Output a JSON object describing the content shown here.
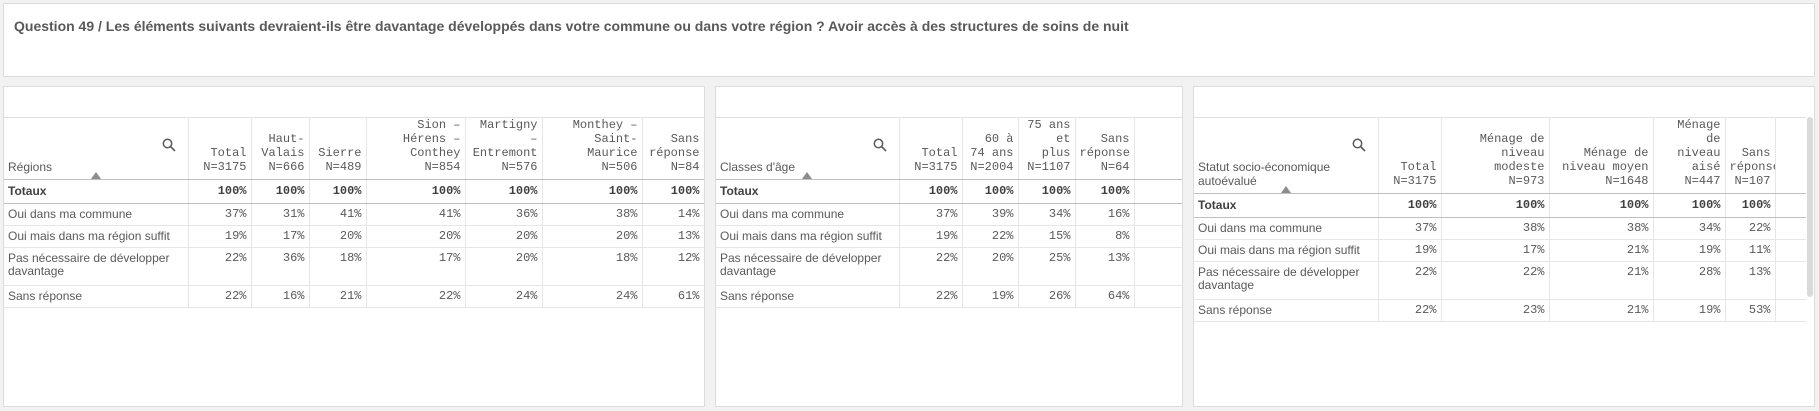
{
  "title": "Question 49 / Les éléments suivants devraient-ils être davantage développés dans votre commune ou dans votre région ? Avoir accès à des structures de soins de nuit",
  "colors": {
    "background": "#f2f2f2",
    "panel": "#ffffff",
    "text": "#595959",
    "border": "#dcdcdc"
  },
  "row_labels": {
    "totals": "Totaux",
    "r1": "Oui dans ma commune",
    "r2": "Oui mais dans ma région suffit",
    "r3": "Pas nécessaire de développer davantage",
    "r4": "Sans réponse"
  },
  "tables": [
    {
      "dimension": "Régions",
      "columns": [
        {
          "name": "Total",
          "n": "N=3175"
        },
        {
          "name": "Haut-Valais",
          "n": "N=666"
        },
        {
          "name": "Sierre",
          "n": "N=489"
        },
        {
          "name": "Sion – Hérens – Conthey",
          "n": "N=854"
        },
        {
          "name": "Martigny – Entremont",
          "n": "N=576"
        },
        {
          "name": "Monthey – Saint-Maurice",
          "n": "N=506"
        },
        {
          "name": "Sans réponse",
          "n": "N=84"
        }
      ],
      "rows": [
        [
          "100%",
          "100%",
          "100%",
          "100%",
          "100%",
          "100%",
          "100%"
        ],
        [
          "37%",
          "31%",
          "41%",
          "41%",
          "36%",
          "38%",
          "14%"
        ],
        [
          "19%",
          "17%",
          "20%",
          "20%",
          "20%",
          "20%",
          "13%"
        ],
        [
          "22%",
          "36%",
          "18%",
          "17%",
          "20%",
          "18%",
          "12%"
        ],
        [
          "22%",
          "16%",
          "21%",
          "22%",
          "24%",
          "24%",
          "61%"
        ]
      ]
    },
    {
      "dimension": "Classes d'âge",
      "columns": [
        {
          "name": "Total",
          "n": "N=3175"
        },
        {
          "name": "60 à 74 ans",
          "n": "N=2004"
        },
        {
          "name": "75 ans et plus",
          "n": "N=1107"
        },
        {
          "name": "Sans réponse",
          "n": "N=64"
        }
      ],
      "rows": [
        [
          "100%",
          "100%",
          "100%",
          "100%"
        ],
        [
          "37%",
          "39%",
          "34%",
          "16%"
        ],
        [
          "19%",
          "22%",
          "15%",
          "8%"
        ],
        [
          "22%",
          "20%",
          "25%",
          "13%"
        ],
        [
          "22%",
          "19%",
          "26%",
          "64%"
        ]
      ]
    },
    {
      "dimension": "Statut socio-économique autoévalué",
      "columns": [
        {
          "name": "Total",
          "n": "N=3175"
        },
        {
          "name": "Ménage de niveau modeste",
          "n": "N=973"
        },
        {
          "name": "Ménage de niveau moyen",
          "n": "N=1648"
        },
        {
          "name": "Ménage de niveau aisé",
          "n": "N=447"
        },
        {
          "name": "Sans réponse",
          "n": "N=107"
        }
      ],
      "rows": [
        [
          "100%",
          "100%",
          "100%",
          "100%",
          "100%"
        ],
        [
          "37%",
          "38%",
          "38%",
          "34%",
          "22%"
        ],
        [
          "19%",
          "17%",
          "21%",
          "19%",
          "11%"
        ],
        [
          "22%",
          "22%",
          "21%",
          "28%",
          "13%"
        ],
        [
          "22%",
          "23%",
          "21%",
          "19%",
          "53%"
        ]
      ]
    }
  ]
}
